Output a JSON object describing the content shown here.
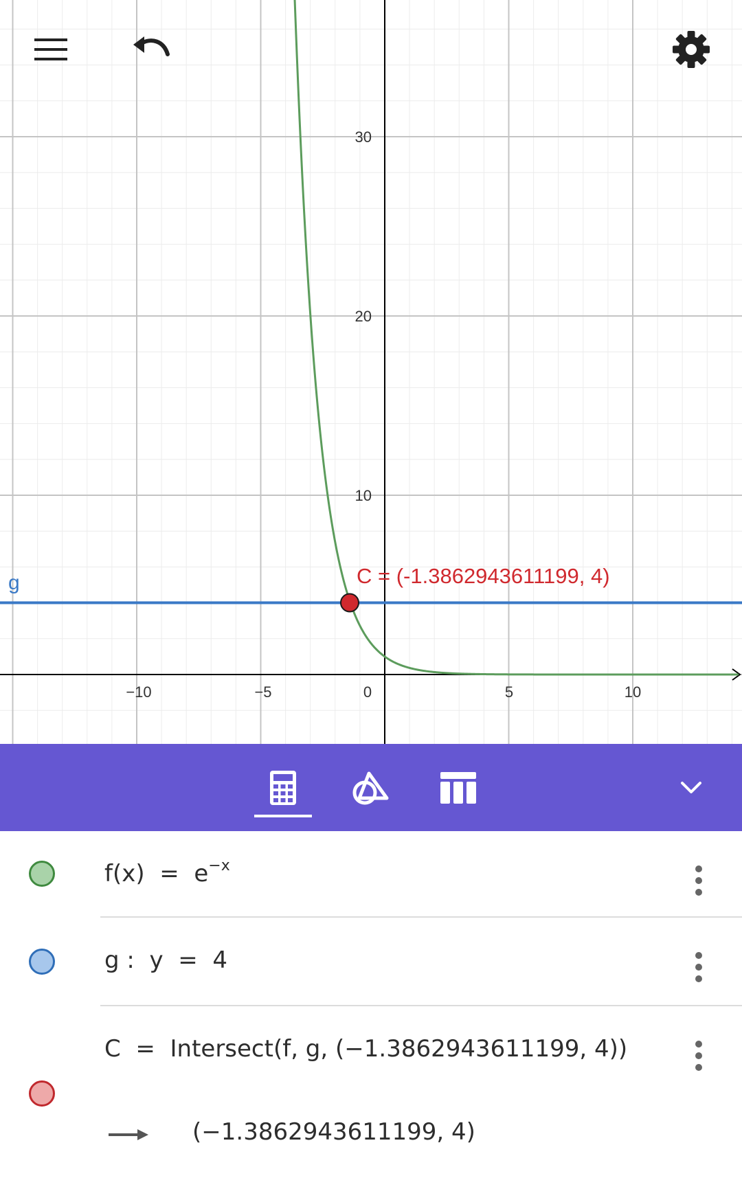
{
  "graph": {
    "x_ticks": [
      "−10",
      "−5",
      "0",
      "5",
      "10"
    ],
    "y_ticks": [
      "10",
      "20",
      "30"
    ],
    "line_label": "g",
    "point_label": "C = (-1.3862943611199, 4)",
    "colors": {
      "curve": "#5c9c5c",
      "line": "#3a79c6",
      "point": "#d0292e",
      "label_line": "#3a79c6",
      "label_point": "#d0292e"
    }
  },
  "icons": {
    "menu": "menu-icon",
    "undo": "undo-icon",
    "settings": "gear-icon",
    "algebra_tab": "calculator-icon",
    "tools_tab": "shapes-icon",
    "table_tab": "table-icon",
    "collapse": "chevron-down-icon"
  },
  "toolbar": {
    "background": "#6557d2"
  },
  "algebra": {
    "rows": [
      {
        "name": "f(x)",
        "eq": "=",
        "rhs_base": "e",
        "rhs_exp": "−x",
        "color": "#5c9c5c",
        "fill": "#a9d3a9"
      },
      {
        "name": "g :",
        "lhs": "y",
        "eq": "=",
        "rhs": "4",
        "color": "#3a79c6",
        "fill": "#a7c7ec"
      },
      {
        "name": "C",
        "eq": "=",
        "definition": "Intersect(f, g, (−1.3862943611199, 4))",
        "value": "(−1.3862943611199, 4)",
        "color": "#d0292e",
        "fill": "#eea9a9"
      }
    ]
  }
}
